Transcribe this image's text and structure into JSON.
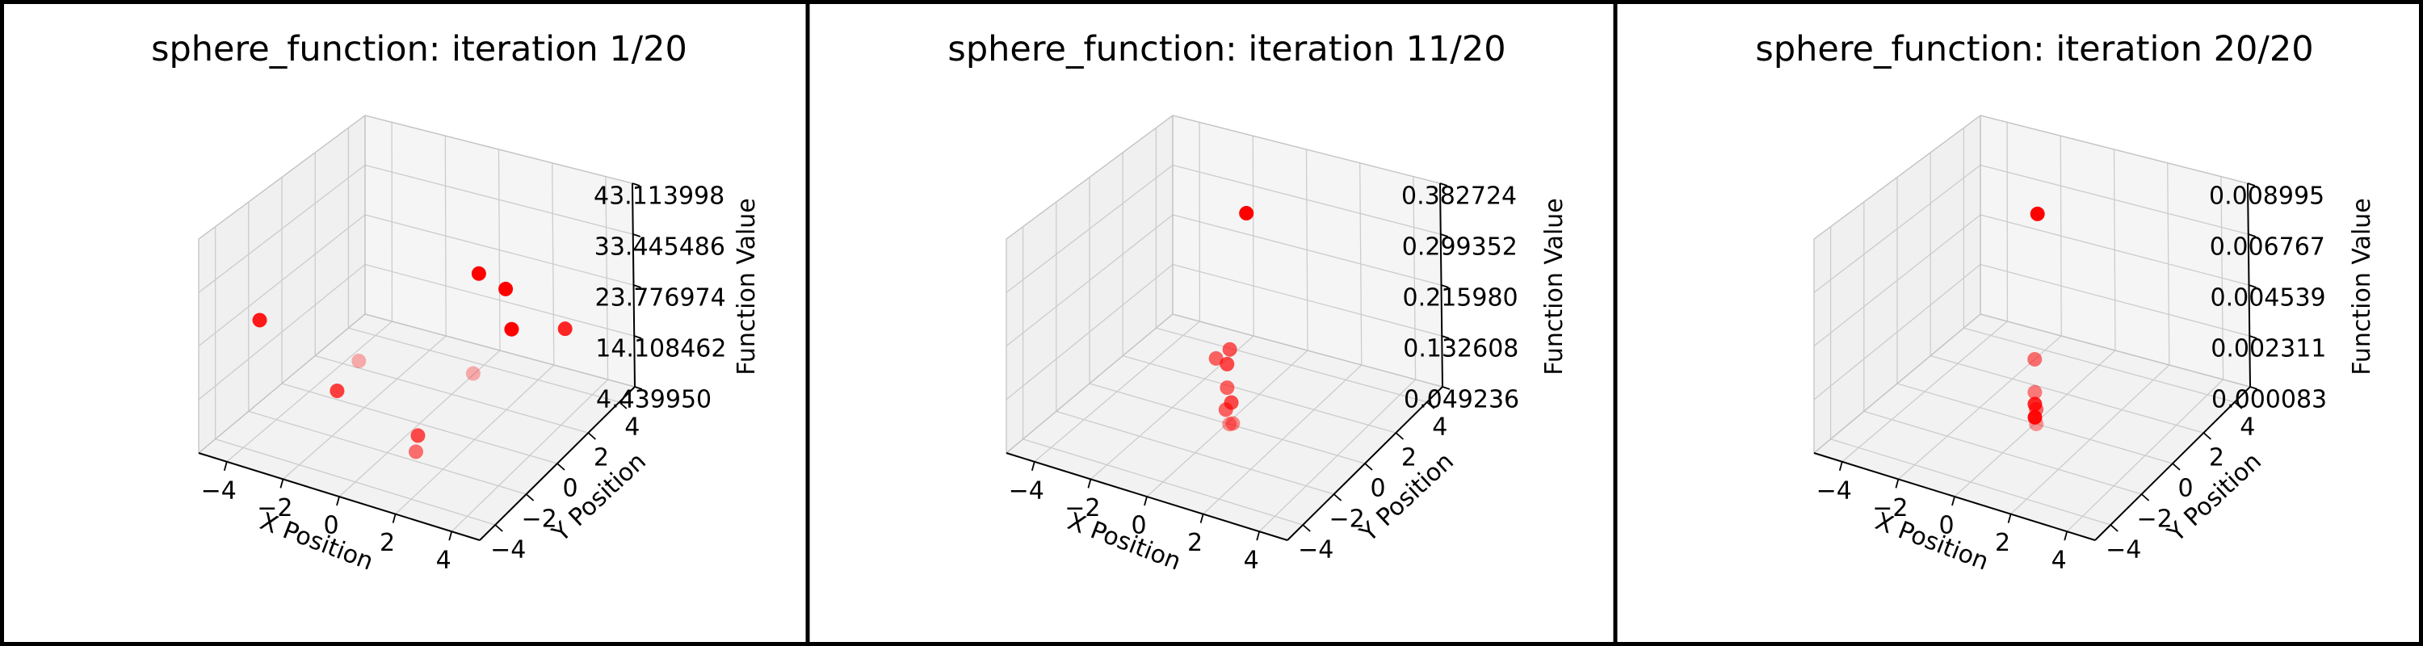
{
  "figure": {
    "background_color": "#ffffff",
    "border_color": "#000000",
    "panel_count": 3
  },
  "colors": {
    "point": "#ff0000",
    "pane_left": "#f0f0f0",
    "pane_right": "#f5f5f5",
    "pane_floor": "#f2f2f2",
    "grid": "#cccccc",
    "pane_edge": "#c4c4c4",
    "axis_line": "#000000",
    "text": "#000000"
  },
  "chart_data": [
    {
      "type": "scatter3d",
      "title": "sphere_function: iteration 1/20",
      "xlabel": "X Position",
      "ylabel": "Y Position",
      "zlabel": "Function Value",
      "xlim": [
        -5,
        5
      ],
      "ylim": [
        -5,
        5
      ],
      "zlim": [
        4.43995,
        43.113998
      ],
      "xtick_values": [
        -4,
        -2,
        0,
        2,
        4
      ],
      "xtick_labels": [
        "−4",
        "−2",
        "0",
        "2",
        "4"
      ],
      "ytick_values": [
        -4,
        -2,
        0,
        2,
        4
      ],
      "ytick_labels": [
        "−4",
        "−2",
        "0",
        "2",
        "4"
      ],
      "ztick_labels": [
        "4.439950",
        "14.108462",
        "23.776974",
        "33.445486",
        "43.113998"
      ],
      "grid": true,
      "points": [
        {
          "x": -3.4,
          "y": 2.0,
          "z": 5.8,
          "alpha": 0.3
        },
        {
          "x": 0.2,
          "y": 3.0,
          "z": 5.9,
          "alpha": 0.3
        },
        {
          "x": 1.6,
          "y": -3.0,
          "z": 9.8,
          "alpha": 0.55
        },
        {
          "x": 1.1,
          "y": -2.0,
          "z": 9.3,
          "alpha": 0.7
        },
        {
          "x": -2.4,
          "y": -1.0,
          "z": 9.6,
          "alpha": 0.75
        },
        {
          "x": -4.6,
          "y": -2.0,
          "z": 21.9,
          "alpha": 0.9
        },
        {
          "x": 3.6,
          "y": 3.0,
          "z": 19.2,
          "alpha": 0.85
        },
        {
          "x": 2.5,
          "y": 1.5,
          "z": 21.7,
          "alpha": 1.0
        },
        {
          "x": 2.0,
          "y": 2.0,
          "z": 27.2,
          "alpha": 1.0
        },
        {
          "x": 1.6,
          "y": 1.0,
          "z": 32.2,
          "alpha": 1.0
        }
      ]
    },
    {
      "type": "scatter3d",
      "title": "sphere_function: iteration 11/20",
      "xlabel": "X Position",
      "ylabel": "Y Position",
      "zlabel": "Function Value",
      "xlim": [
        -5,
        5
      ],
      "ylim": [
        -5,
        5
      ],
      "zlim": [
        0.049236,
        0.382724
      ],
      "xtick_values": [
        -4,
        -2,
        0,
        2,
        4
      ],
      "xtick_labels": [
        "−4",
        "−2",
        "0",
        "2",
        "4"
      ],
      "ytick_values": [
        -4,
        -2,
        0,
        2,
        4
      ],
      "ytick_labels": [
        "−4",
        "−2",
        "0",
        "2",
        "4"
      ],
      "ztick_labels": [
        "0.049236",
        "0.132608",
        "0.215980",
        "0.299352",
        "0.382724"
      ],
      "grid": true,
      "points": [
        {
          "x": 0.08,
          "y": 0.0,
          "z": 0.0493,
          "alpha": 0.4
        },
        {
          "x": 0.2,
          "y": 0.0,
          "z": 0.052,
          "alpha": 0.45
        },
        {
          "x": -0.05,
          "y": 0.0,
          "z": 0.071,
          "alpha": 0.6
        },
        {
          "x": 0.15,
          "y": 0.0,
          "z": 0.085,
          "alpha": 0.7
        },
        {
          "x": 0.0,
          "y": 0.0,
          "z": 0.107,
          "alpha": 0.6
        },
        {
          "x": 0.1,
          "y": 0.0,
          "z": 0.17,
          "alpha": 0.65
        },
        {
          "x": -0.4,
          "y": 0.0,
          "z": 0.149,
          "alpha": 0.6
        },
        {
          "x": 0.0,
          "y": 0.0,
          "z": 0.145,
          "alpha": 0.7
        },
        {
          "x": 0.43,
          "y": 0.5,
          "z": 0.382724,
          "alpha": 1.0
        }
      ]
    },
    {
      "type": "scatter3d",
      "title": "sphere_function: iteration 20/20",
      "xlabel": "X Position",
      "ylabel": "Y Position",
      "zlabel": "Function Value",
      "xlim": [
        -5,
        5
      ],
      "ylim": [
        -5,
        5
      ],
      "zlim": [
        8.3e-05,
        0.008995
      ],
      "xtick_values": [
        -4,
        -2,
        0,
        2,
        4
      ],
      "xtick_labels": [
        "−4",
        "−2",
        "0",
        "2",
        "4"
      ],
      "ytick_values": [
        -4,
        -2,
        0,
        2,
        4
      ],
      "ytick_labels": [
        "−4",
        "−2",
        "0",
        "2",
        "4"
      ],
      "ztick_labels": [
        "0.000083",
        "0.002311",
        "0.004539",
        "0.006767",
        "0.008995"
      ],
      "grid": true,
      "points": [
        {
          "x": 0.0,
          "y": 0.0,
          "z": 0.00285,
          "alpha": 0.55
        },
        {
          "x": 0.0,
          "y": 0.0,
          "z": 0.00143,
          "alpha": 0.5
        },
        {
          "x": 0.05,
          "y": 0.0,
          "z": 0.00071,
          "alpha": 0.6
        },
        {
          "x": 0.0,
          "y": 0.0,
          "z": 0.00092,
          "alpha": 0.85
        },
        {
          "x": 0.05,
          "y": 0.0,
          "z": 8.3e-05,
          "alpha": 0.4
        },
        {
          "x": 0.0,
          "y": 0.0,
          "z": 0.00035,
          "alpha": 0.95
        },
        {
          "x": 0.0,
          "y": 0.2,
          "z": 0.008995,
          "alpha": 1.0
        }
      ]
    }
  ]
}
